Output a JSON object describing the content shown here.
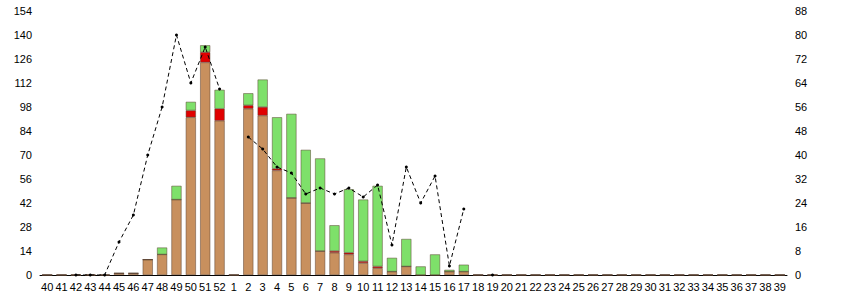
{
  "chart_data": {
    "type": "bar",
    "stacked": true,
    "grid": false,
    "categories": [
      "40",
      "41",
      "42",
      "43",
      "44",
      "45",
      "46",
      "47",
      "48",
      "49",
      "50",
      "51",
      "52",
      "1",
      "2",
      "3",
      "4",
      "5",
      "6",
      "7",
      "8",
      "9",
      "10",
      "11",
      "12",
      "13",
      "14",
      "15",
      "16",
      "17",
      "18",
      "19",
      "20",
      "21",
      "22",
      "23",
      "24",
      "25",
      "26",
      "27",
      "28",
      "29",
      "30",
      "31",
      "32",
      "33",
      "34",
      "35",
      "36",
      "37",
      "38",
      "39"
    ],
    "ylim": [
      0,
      154
    ],
    "yticks": [
      0,
      14,
      28,
      42,
      56,
      70,
      84,
      98,
      112,
      126,
      140,
      154
    ],
    "y2lim": [
      0,
      88
    ],
    "y2ticks": [
      0,
      8,
      16,
      24,
      32,
      40,
      48,
      56,
      64,
      72,
      80,
      88
    ],
    "series": [
      {
        "type": "bar",
        "color": "#c8905e",
        "values": [
          0,
          0,
          0,
          0,
          0,
          1,
          1,
          9,
          12,
          44,
          92,
          124,
          90,
          0,
          97,
          93,
          61,
          45,
          42,
          14,
          13,
          12,
          7,
          4,
          2,
          5,
          0,
          0,
          2,
          2,
          0,
          0,
          0,
          0,
          0,
          0,
          0,
          0,
          0,
          0,
          0,
          0,
          0,
          0,
          0,
          0,
          0,
          0,
          0,
          0,
          0,
          0
        ]
      },
      {
        "type": "bar",
        "color": "#e00000",
        "values": [
          0,
          0,
          0,
          0,
          0,
          0,
          0,
          0,
          0,
          0,
          4,
          6,
          7,
          0,
          2,
          5,
          1,
          0,
          0,
          0,
          1,
          1,
          1,
          1,
          0,
          0,
          0,
          0,
          0,
          0,
          0,
          0,
          0,
          0,
          0,
          0,
          0,
          0,
          0,
          0,
          0,
          0,
          0,
          0,
          0,
          0,
          0,
          0,
          0,
          0,
          0,
          0
        ]
      },
      {
        "type": "bar",
        "color": "#7ee06a",
        "values": [
          0,
          0,
          0,
          0,
          0,
          0,
          0,
          0,
          4,
          8,
          5,
          4,
          11,
          0,
          7,
          16,
          30,
          49,
          31,
          54,
          15,
          37,
          36,
          47,
          8,
          16,
          5,
          12,
          1,
          4,
          0,
          0,
          0,
          0,
          0,
          0,
          0,
          0,
          0,
          0,
          0,
          0,
          0,
          0,
          0,
          0,
          0,
          0,
          0,
          0,
          0,
          0
        ]
      },
      {
        "type": "line",
        "axis": "y2",
        "color": "#000000",
        "line_style": "dashed",
        "marker": "circle",
        "values": [
          null,
          null,
          0,
          0,
          0,
          11,
          20,
          40,
          56,
          80,
          64,
          76,
          62,
          null,
          46,
          42,
          36,
          34,
          27,
          29,
          27,
          29,
          26,
          30,
          10,
          36,
          24,
          33,
          3,
          22,
          null,
          0,
          null,
          null,
          null,
          null,
          null,
          null,
          null,
          null,
          null,
          null,
          null,
          null,
          null,
          null,
          null,
          null,
          null,
          null,
          null,
          null
        ]
      }
    ]
  }
}
